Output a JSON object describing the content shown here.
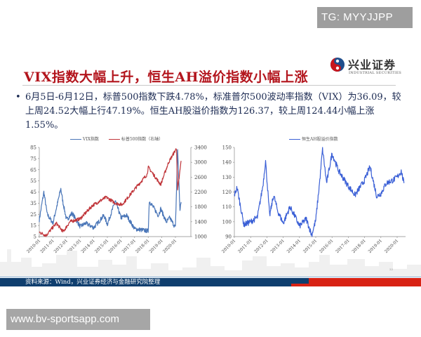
{
  "watermarks": {
    "top": "TG: MYYJJPP",
    "bottom": "www.bv-sportsapp.com"
  },
  "slide": {
    "title": "VIX指数大幅上升，恒生AH溢价指数小幅上涨",
    "logo": {
      "name_cn": "兴业证券",
      "name_en": "INDUSTRIAL SECURITIES",
      "colors": {
        "red": "#c8161d",
        "blue": "#1f4e8c"
      }
    },
    "bullet_marker": "•",
    "bullet_text": "6月5日-6月12日，标普500指数下跌4.78%，标准普尔500波动率指数（VIX）为36.09，较上周24.52大幅上行47.19%。恒生AH股溢价指数为126.37，较上周124.44小幅上涨1.55%。",
    "footer_source": "资料来源：Wind，兴业证券经济与金融研究院整理",
    "page_number": "22",
    "colors": {
      "title": "#b3151d",
      "text": "#1b2a52",
      "footer_blue": "#0f3e6e",
      "footer_red": "#d82214"
    }
  },
  "chart_data": [
    {
      "type": "line",
      "title": "",
      "legend": [
        "VIX指数",
        "标普500指数（右轴）"
      ],
      "legend_position": "top",
      "x": [
        "2010-01",
        "2011-01",
        "2012-01",
        "2013-01",
        "2014-01",
        "2015-01",
        "2016-01",
        "2017-01",
        "2018-01",
        "2019-01",
        "2020-01"
      ],
      "xlabel": "",
      "ylabel": "",
      "ylim": [
        5,
        85
      ],
      "yticks": [
        5,
        15,
        25,
        35,
        45,
        55,
        65,
        75,
        85
      ],
      "y2lim": [
        1000,
        3400
      ],
      "y2ticks": [
        1000,
        1400,
        1800,
        2200,
        2600,
        3000,
        3400
      ],
      "grid": false,
      "series": [
        {
          "name": "VIX指数",
          "axis": "left",
          "color": "#4a76b8",
          "x": [
            "2010-01",
            "2010-05",
            "2010-08",
            "2011-01",
            "2011-08",
            "2011-10",
            "2012-01",
            "2012-06",
            "2013-01",
            "2013-06",
            "2014-01",
            "2014-10",
            "2015-01",
            "2015-08",
            "2016-01",
            "2016-06",
            "2017-01",
            "2018-01",
            "2018-02",
            "2018-10",
            "2018-12",
            "2019-05",
            "2019-08",
            "2020-01",
            "2020-03",
            "2020-05",
            "2020-06"
          ],
          "values": [
            20,
            45,
            25,
            17,
            48,
            35,
            20,
            26,
            14,
            17,
            13,
            24,
            16,
            37,
            22,
            24,
            12,
            10,
            37,
            24,
            30,
            18,
            22,
            13,
            83,
            28,
            36
          ]
        },
        {
          "name": "标普500指数（右轴）",
          "axis": "right",
          "color": "#c0353a",
          "x": [
            "2010-01",
            "2010-07",
            "2011-04",
            "2011-10",
            "2012-04",
            "2013-01",
            "2013-12",
            "2014-12",
            "2015-08",
            "2016-02",
            "2016-12",
            "2017-12",
            "2018-01",
            "2018-12",
            "2019-07",
            "2020-02",
            "2020-03",
            "2020-06"
          ],
          "values": [
            1120,
            1030,
            1360,
            1130,
            1400,
            1480,
            1840,
            2060,
            1900,
            1860,
            2240,
            2670,
            2870,
            2400,
            3000,
            3380,
            2240,
            3040
          ]
        }
      ]
    },
    {
      "type": "line",
      "title": "",
      "legend": [
        "恒生AH股溢价指数"
      ],
      "legend_position": "top",
      "x": [
        "2010-01",
        "2011-01",
        "2012-01",
        "2013-01",
        "2014-01",
        "2015-01",
        "2016-01",
        "2017-01",
        "2018-01",
        "2019-01",
        "2020-01"
      ],
      "xlabel": "",
      "ylabel": "",
      "ylim": [
        90,
        150
      ],
      "yticks": [
        90,
        100,
        110,
        120,
        130,
        140,
        150
      ],
      "grid": false,
      "series": [
        {
          "name": "恒生AH股溢价指数",
          "color": "#3a5fd6",
          "x": [
            "2010-01",
            "2010-03",
            "2010-08",
            "2011-01",
            "2011-06",
            "2011-10",
            "2011-12",
            "2012-03",
            "2012-06",
            "2012-09",
            "2013-01",
            "2013-06",
            "2013-10",
            "2014-01",
            "2014-06",
            "2014-10",
            "2015-01",
            "2015-04",
            "2015-06",
            "2015-09",
            "2016-01",
            "2016-06",
            "2017-01",
            "2017-06",
            "2018-01",
            "2018-05",
            "2018-10",
            "2019-01",
            "2019-05",
            "2019-10",
            "2020-01",
            "2020-04",
            "2020-06"
          ],
          "values": [
            118,
            123,
            98,
            100,
            103,
            124,
            141,
            104,
            118,
            107,
            99,
            110,
            103,
            97,
            102,
            91,
            101,
            128,
            149,
            126,
            146,
            134,
            124,
            118,
            128,
            137,
            117,
            119,
            126,
            128,
            130,
            134,
            126
          ]
        }
      ]
    }
  ]
}
